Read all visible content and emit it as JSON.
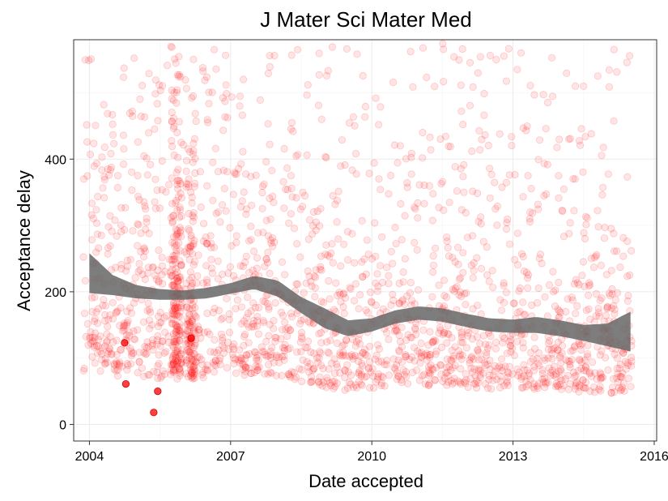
{
  "chart_data": {
    "type": "scatter",
    "title": "J Mater Sci Mater Med",
    "xlabel": "Date accepted",
    "ylabel": "Acceptance delay",
    "x_scale": "date",
    "xlim": [
      "2003-09-01",
      "2016-01-20"
    ],
    "ylim": [
      -25,
      580
    ],
    "x_ticks": [
      "2004",
      "2007",
      "2010",
      "2013",
      "2016"
    ],
    "y_ticks": [
      0,
      200,
      400
    ],
    "grid": true,
    "legend": "none",
    "point_color": "#ff0000",
    "point_opacity": 0.12,
    "band_color": "#666666",
    "smooth_trend": {
      "x": [
        "2004-01-01",
        "2004-07-01",
        "2005-01-01",
        "2005-07-01",
        "2006-01-01",
        "2006-07-01",
        "2007-01-01",
        "2007-07-01",
        "2008-01-01",
        "2008-07-01",
        "2009-01-01",
        "2009-07-01",
        "2010-01-01",
        "2010-07-01",
        "2011-01-01",
        "2011-07-01",
        "2012-01-01",
        "2012-07-01",
        "2013-01-01",
        "2013-07-01",
        "2014-01-01",
        "2014-07-01",
        "2015-01-01",
        "2015-07-01"
      ],
      "y": [
        228,
        210,
        200,
        196,
        195,
        198,
        205,
        214,
        205,
        180,
        160,
        145,
        150,
        162,
        168,
        165,
        157,
        150,
        148,
        150,
        145,
        138,
        135,
        140
      ],
      "lower": [
        198,
        195,
        190,
        188,
        188,
        190,
        197,
        204,
        193,
        168,
        145,
        133,
        140,
        152,
        158,
        155,
        147,
        140,
        138,
        138,
        133,
        126,
        118,
        110
      ],
      "upper": [
        258,
        225,
        210,
        204,
        202,
        206,
        213,
        224,
        217,
        192,
        175,
        157,
        160,
        172,
        178,
        175,
        167,
        160,
        158,
        162,
        157,
        150,
        152,
        170
      ]
    },
    "highlight_points": {
      "x": [
        "2004-10-01",
        "2004-10-10",
        "2005-05-15",
        "2005-06-15",
        "2006-03-01"
      ],
      "y": [
        123,
        61,
        18,
        50,
        130
      ]
    }
  }
}
